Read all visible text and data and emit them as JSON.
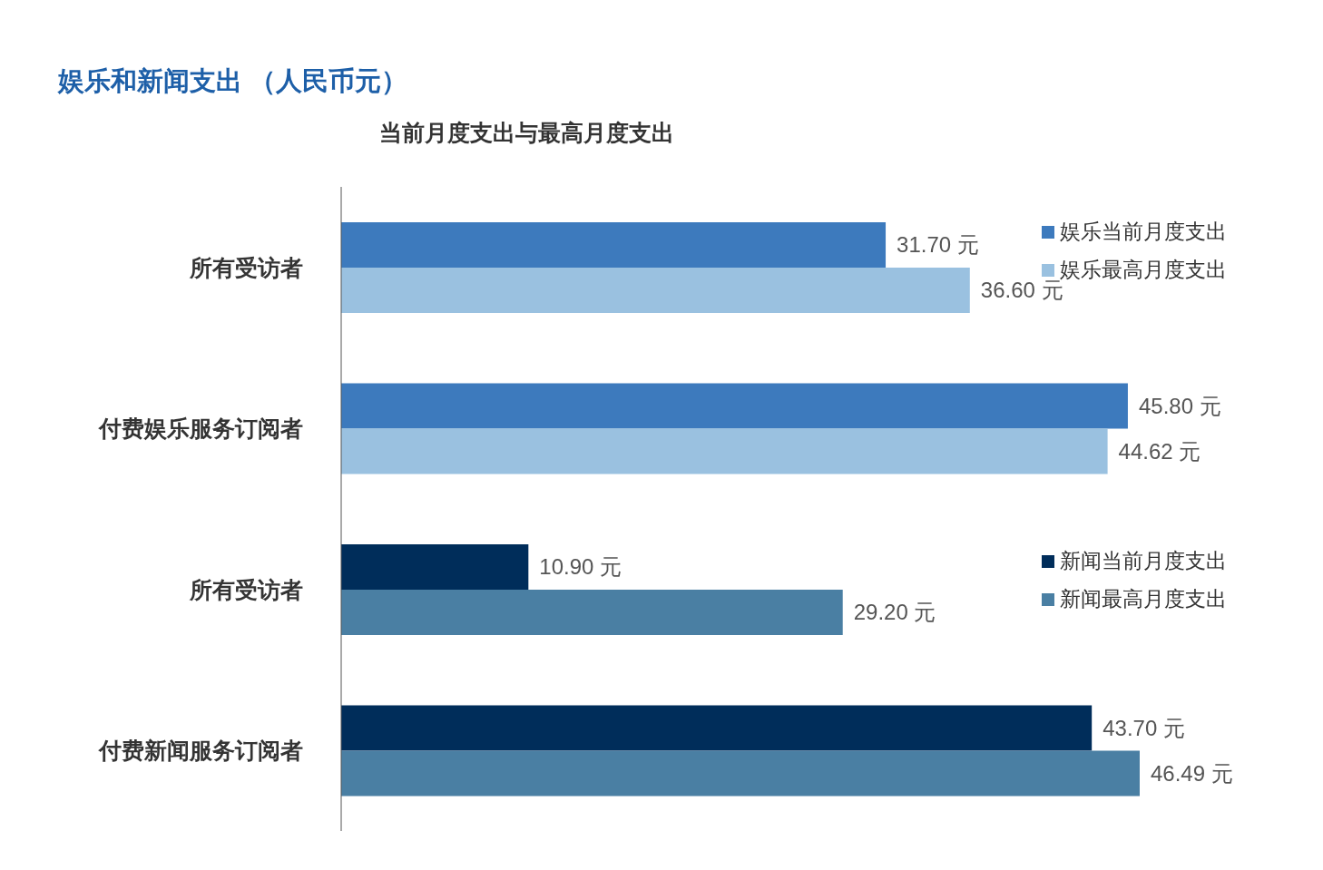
{
  "chart_data": {
    "type": "bar",
    "orientation": "horizontal",
    "title": "娱乐和新闻支出 （人民币元）",
    "subtitle": "当前月度支出与最高月度支出",
    "categories": [
      "所有受访者",
      "付费娱乐服务订阅者",
      "所有受访者",
      "付费新闻服务订阅者"
    ],
    "series": [
      {
        "name": "娱乐当前月度支出",
        "color": "#3d7abd",
        "values": [
          31.7,
          45.8,
          null,
          null
        ],
        "value_labels": [
          "31.70 元",
          "45.80 元",
          null,
          null
        ]
      },
      {
        "name": "娱乐最高月度支出",
        "color": "#9ac1e0",
        "values": [
          36.6,
          44.62,
          null,
          null
        ],
        "value_labels": [
          "36.60 元",
          "44.62 元",
          null,
          null
        ]
      },
      {
        "name": "新闻当前月度支出",
        "color": "#002d5a",
        "values": [
          null,
          null,
          10.9,
          43.7
        ],
        "value_labels": [
          null,
          null,
          "10.90 元",
          "43.70 元"
        ]
      },
      {
        "name": "新闻最高月度支出",
        "color": "#4a7fa3",
        "values": [
          null,
          null,
          29.2,
          46.49
        ],
        "value_labels": [
          null,
          null,
          "29.20 元",
          "46.49 元"
        ]
      }
    ],
    "legend": "right"
  }
}
